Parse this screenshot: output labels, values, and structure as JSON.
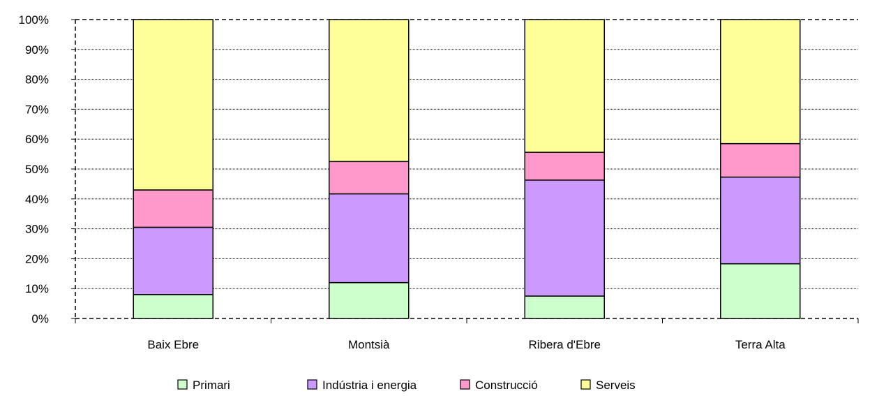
{
  "chart_data": {
    "type": "bar",
    "stacked": "percent",
    "categories": [
      "Baix Ebre",
      "Montsià",
      "Ribera d'Ebre",
      "Terra Alta"
    ],
    "series": [
      {
        "name": "Primari",
        "values": [
          8,
          12,
          7.5,
          18.3
        ],
        "color": "#ccffcc"
      },
      {
        "name": "Indústria i energia",
        "values": [
          22.5,
          29.7,
          38.8,
          29
        ],
        "color": "#cc99ff"
      },
      {
        "name": "Construcció",
        "values": [
          12.5,
          10.8,
          9.3,
          11.2
        ],
        "color": "#ff99cc"
      },
      {
        "name": "Serveis",
        "values": [
          57,
          47.5,
          44.4,
          41.5
        ],
        "color": "#ffff99"
      }
    ],
    "yticks": [
      "0%",
      "10%",
      "20%",
      "30%",
      "40%",
      "50%",
      "60%",
      "70%",
      "80%",
      "90%",
      "100%"
    ],
    "ylim": [
      0,
      100
    ],
    "grid": true,
    "legend_position": "bottom",
    "title": "",
    "xlabel": "",
    "ylabel": ""
  }
}
